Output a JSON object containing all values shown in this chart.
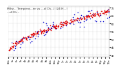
{
  "title_line1": "Milw... Tempera...re vs ...d Ch...l (24 H...)",
  "title_full": "Milw... Tempera...re vs ...d Ch...l (24 H...)",
  "bg_color": "#ffffff",
  "plot_bg_color": "#ffffff",
  "grid_color": "#aaaaaa",
  "outdoor_temp_color": "#dd0000",
  "wind_chill_color": "#0000cc",
  "ylim": [
    39,
    71
  ],
  "yticks": [
    40,
    45,
    50,
    55,
    60,
    65,
    70
  ],
  "xlim": [
    0,
    1440
  ],
  "title_fontsize": 3.2,
  "tick_fontsize": 2.5,
  "marker_size": 1.2
}
